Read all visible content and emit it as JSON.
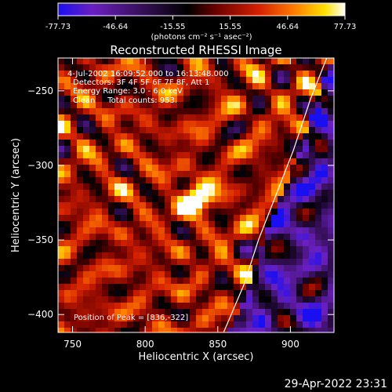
{
  "chart_data": {
    "type": "heatmap",
    "title": "Reconstructed RHESSI Image",
    "xlabel": "Heliocentric X (arcsec)",
    "ylabel": "Heliocentric Y (arcsec)",
    "xlim": [
      740,
      930
    ],
    "ylim": [
      -412,
      -228
    ],
    "x_ticks": [
      750,
      800,
      850,
      900
    ],
    "y_ticks": [
      -400,
      -350,
      -300,
      -250
    ],
    "colorbar": {
      "min": -77.73,
      "max": 77.73,
      "ticks": [
        "-77.73",
        "-46.64",
        "-15.55",
        "15.55",
        "46.64",
        "77.73"
      ],
      "units": "(photons cm⁻² s⁻¹ asec⁻²)",
      "colors": [
        "#1a0ff0",
        "#6a20c0",
        "#3a1060",
        "#000000",
        "#6a0000",
        "#d42000",
        "#ff7a00",
        "#ffe000",
        "#ffffff"
      ]
    },
    "annotations": [
      "4-Jul-2002 16:09:52.000 to 16:13:48.000",
      "Detectors: 3F 4F 5F 6F 7F 8F, Att 1",
      "Energy Range: 3.0 - 6.0 keV",
      "Clean     Total counts: 953.",
      "Position of Peak = [836,-322]"
    ],
    "peak": {
      "x": 836,
      "y": -322
    },
    "limb_curve": [
      [
        854,
        -412
      ],
      [
        868,
        -380
      ],
      [
        878,
        -350
      ],
      [
        890,
        -320
      ],
      [
        902,
        -290
      ],
      [
        914,
        -255
      ],
      [
        925,
        -228
      ]
    ]
  },
  "footer": {
    "timestamp": "29-Apr-2022 23:31"
  }
}
